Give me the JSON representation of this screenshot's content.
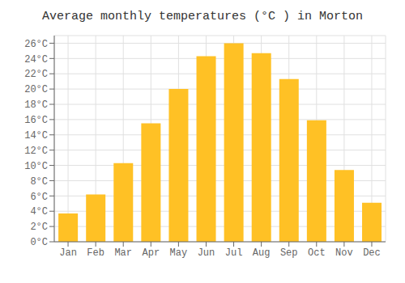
{
  "chart_data": {
    "type": "bar",
    "title": "Average monthly temperatures (°C ) in Morton",
    "categories": [
      "Jan",
      "Feb",
      "Mar",
      "Apr",
      "May",
      "Jun",
      "Jul",
      "Aug",
      "Sep",
      "Oct",
      "Nov",
      "Dec"
    ],
    "values": [
      3.7,
      6.2,
      10.3,
      15.5,
      20.0,
      24.3,
      26.0,
      24.7,
      21.3,
      15.9,
      9.4,
      5.1
    ],
    "color": "#FFC125",
    "ylim": [
      0,
      27
    ],
    "yticks": [
      {
        "value": 0,
        "label": "0°C"
      },
      {
        "value": 2,
        "label": "2°C"
      },
      {
        "value": 4,
        "label": "4°C"
      },
      {
        "value": 6,
        "label": "6°C"
      },
      {
        "value": 8,
        "label": "8°C"
      },
      {
        "value": 10,
        "label": "10°C"
      },
      {
        "value": 12,
        "label": "12°C"
      },
      {
        "value": 14,
        "label": "14°C"
      },
      {
        "value": 16,
        "label": "16°C"
      },
      {
        "value": 18,
        "label": "18°C"
      },
      {
        "value": 20,
        "label": "20°C"
      },
      {
        "value": 22,
        "label": "22°C"
      },
      {
        "value": 24,
        "label": "24°C"
      },
      {
        "value": 26,
        "label": "26°C"
      }
    ],
    "grid": true
  }
}
